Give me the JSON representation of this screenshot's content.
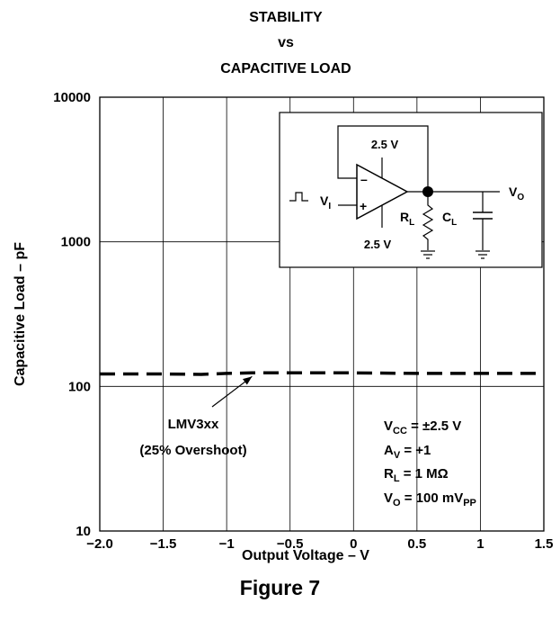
{
  "chart_data": {
    "type": "line",
    "title_lines": [
      "STABILITY",
      "vs",
      "CAPACITIVE LOAD"
    ],
    "xlabel": "Output Voltage – V",
    "ylabel": "Capacitive Load – pF",
    "xlim": [
      -2.0,
      1.5
    ],
    "ylim": [
      10,
      10000
    ],
    "yscale": "log",
    "grid": true,
    "x_ticks": [
      -2.0,
      -1.5,
      -1,
      -0.5,
      0,
      0.5,
      1,
      1.5
    ],
    "x_tick_labels": [
      "−2.0",
      "−1.5",
      "−1",
      "−0.5",
      "0",
      "0.5",
      "1",
      "1.5"
    ],
    "y_ticks": [
      10,
      100,
      1000,
      10000
    ],
    "y_tick_labels": [
      "10",
      "100",
      "1000",
      "10000"
    ],
    "series": [
      {
        "name": "LMV3xx",
        "style": "dashed",
        "x": [
          -2.0,
          -1.5,
          -1.2,
          -1.0,
          -0.8,
          -0.5,
          0.0,
          0.5,
          1.0,
          1.5
        ],
        "y": [
          122,
          122,
          121,
          123,
          124,
          124,
          124,
          123,
          123,
          123
        ]
      }
    ],
    "annotation": {
      "lines": [
        "LMV3xx",
        "(25% Overshoot)"
      ],
      "arrow_to": {
        "x": -0.8,
        "y": 124
      }
    },
    "conditions": [
      {
        "main": "V",
        "sub": "CC",
        "rest": " = ±2.5 V"
      },
      {
        "main": "A",
        "sub": "V",
        "rest": " = +1"
      },
      {
        "main": "R",
        "sub": "L",
        "rest": " = 1 MΩ"
      },
      {
        "main": "V",
        "sub": "O",
        "rest": " = 100 mV",
        "sub2": "PP"
      }
    ],
    "circuit": {
      "supply_top": "2.5 V",
      "supply_bottom": "2.5 V",
      "input_label": "V",
      "input_sub": "I",
      "output_label": "V",
      "output_sub": "O",
      "rl_label": "R",
      "rl_sub": "L",
      "cl_label": "C",
      "cl_sub": "L",
      "minus_sign": "–",
      "plus_sign": "+"
    }
  },
  "figure_label": "Figure 7"
}
